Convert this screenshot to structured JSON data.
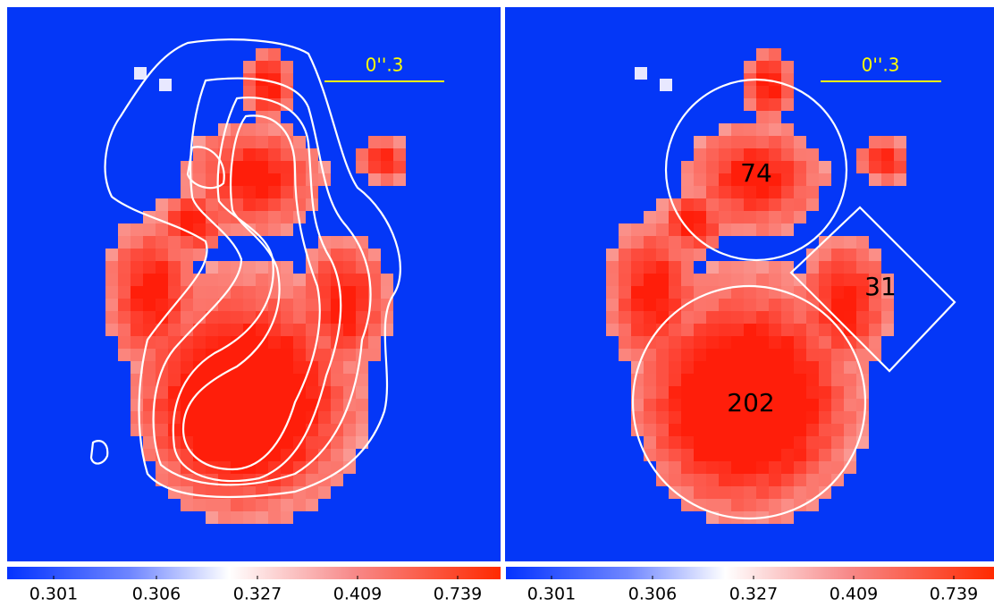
{
  "panels": [
    {
      "scale_label": "0''.3",
      "colorbar": {
        "ticks": [
          0.301,
          0.306,
          0.327,
          0.409,
          0.739
        ]
      }
    },
    {
      "scale_label": "0''.3",
      "regions": [
        {
          "label": "74"
        },
        {
          "label": "202"
        },
        {
          "label": "31"
        }
      ],
      "colorbar": {
        "ticks": [
          0.301,
          0.306,
          0.327,
          0.409,
          0.739
        ]
      }
    }
  ]
}
